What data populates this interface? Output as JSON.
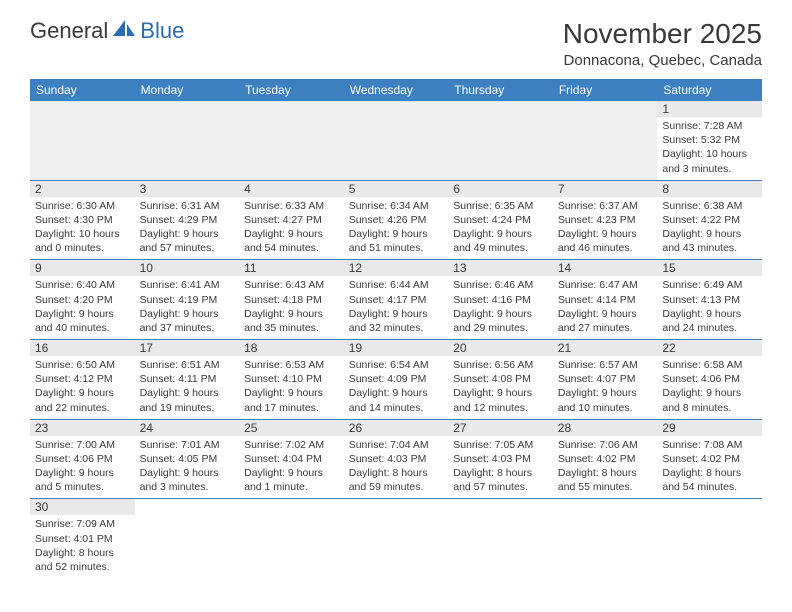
{
  "logo": {
    "part1": "General",
    "part2": "Blue",
    "part1_color": "#3a3a3a",
    "part2_color": "#2a6db3"
  },
  "title": "November 2025",
  "location": "Donnacona, Quebec, Canada",
  "colors": {
    "header_bg": "#3c80c2",
    "header_text": "#ffffff",
    "row_divider": "#3c80c2",
    "daynum_bg": "#e9e9e9",
    "blank_bg": "#efefef",
    "text": "#3a3a3a"
  },
  "weekdays": [
    "Sunday",
    "Monday",
    "Tuesday",
    "Wednesday",
    "Thursday",
    "Friday",
    "Saturday"
  ],
  "weeks": [
    [
      null,
      null,
      null,
      null,
      null,
      null,
      {
        "day": "1",
        "sunrise": "7:28 AM",
        "sunset": "5:32 PM",
        "daylight": "10 hours and 3 minutes."
      }
    ],
    [
      {
        "day": "2",
        "sunrise": "6:30 AM",
        "sunset": "4:30 PM",
        "daylight": "10 hours and 0 minutes."
      },
      {
        "day": "3",
        "sunrise": "6:31 AM",
        "sunset": "4:29 PM",
        "daylight": "9 hours and 57 minutes."
      },
      {
        "day": "4",
        "sunrise": "6:33 AM",
        "sunset": "4:27 PM",
        "daylight": "9 hours and 54 minutes."
      },
      {
        "day": "5",
        "sunrise": "6:34 AM",
        "sunset": "4:26 PM",
        "daylight": "9 hours and 51 minutes."
      },
      {
        "day": "6",
        "sunrise": "6:35 AM",
        "sunset": "4:24 PM",
        "daylight": "9 hours and 49 minutes."
      },
      {
        "day": "7",
        "sunrise": "6:37 AM",
        "sunset": "4:23 PM",
        "daylight": "9 hours and 46 minutes."
      },
      {
        "day": "8",
        "sunrise": "6:38 AM",
        "sunset": "4:22 PM",
        "daylight": "9 hours and 43 minutes."
      }
    ],
    [
      {
        "day": "9",
        "sunrise": "6:40 AM",
        "sunset": "4:20 PM",
        "daylight": "9 hours and 40 minutes."
      },
      {
        "day": "10",
        "sunrise": "6:41 AM",
        "sunset": "4:19 PM",
        "daylight": "9 hours and 37 minutes."
      },
      {
        "day": "11",
        "sunrise": "6:43 AM",
        "sunset": "4:18 PM",
        "daylight": "9 hours and 35 minutes."
      },
      {
        "day": "12",
        "sunrise": "6:44 AM",
        "sunset": "4:17 PM",
        "daylight": "9 hours and 32 minutes."
      },
      {
        "day": "13",
        "sunrise": "6:46 AM",
        "sunset": "4:16 PM",
        "daylight": "9 hours and 29 minutes."
      },
      {
        "day": "14",
        "sunrise": "6:47 AM",
        "sunset": "4:14 PM",
        "daylight": "9 hours and 27 minutes."
      },
      {
        "day": "15",
        "sunrise": "6:49 AM",
        "sunset": "4:13 PM",
        "daylight": "9 hours and 24 minutes."
      }
    ],
    [
      {
        "day": "16",
        "sunrise": "6:50 AM",
        "sunset": "4:12 PM",
        "daylight": "9 hours and 22 minutes."
      },
      {
        "day": "17",
        "sunrise": "6:51 AM",
        "sunset": "4:11 PM",
        "daylight": "9 hours and 19 minutes."
      },
      {
        "day": "18",
        "sunrise": "6:53 AM",
        "sunset": "4:10 PM",
        "daylight": "9 hours and 17 minutes."
      },
      {
        "day": "19",
        "sunrise": "6:54 AM",
        "sunset": "4:09 PM",
        "daylight": "9 hours and 14 minutes."
      },
      {
        "day": "20",
        "sunrise": "6:56 AM",
        "sunset": "4:08 PM",
        "daylight": "9 hours and 12 minutes."
      },
      {
        "day": "21",
        "sunrise": "6:57 AM",
        "sunset": "4:07 PM",
        "daylight": "9 hours and 10 minutes."
      },
      {
        "day": "22",
        "sunrise": "6:58 AM",
        "sunset": "4:06 PM",
        "daylight": "9 hours and 8 minutes."
      }
    ],
    [
      {
        "day": "23",
        "sunrise": "7:00 AM",
        "sunset": "4:06 PM",
        "daylight": "9 hours and 5 minutes."
      },
      {
        "day": "24",
        "sunrise": "7:01 AM",
        "sunset": "4:05 PM",
        "daylight": "9 hours and 3 minutes."
      },
      {
        "day": "25",
        "sunrise": "7:02 AM",
        "sunset": "4:04 PM",
        "daylight": "9 hours and 1 minute."
      },
      {
        "day": "26",
        "sunrise": "7:04 AM",
        "sunset": "4:03 PM",
        "daylight": "8 hours and 59 minutes."
      },
      {
        "day": "27",
        "sunrise": "7:05 AM",
        "sunset": "4:03 PM",
        "daylight": "8 hours and 57 minutes."
      },
      {
        "day": "28",
        "sunrise": "7:06 AM",
        "sunset": "4:02 PM",
        "daylight": "8 hours and 55 minutes."
      },
      {
        "day": "29",
        "sunrise": "7:08 AM",
        "sunset": "4:02 PM",
        "daylight": "8 hours and 54 minutes."
      }
    ],
    [
      {
        "day": "30",
        "sunrise": "7:09 AM",
        "sunset": "4:01 PM",
        "daylight": "8 hours and 52 minutes."
      },
      null,
      null,
      null,
      null,
      null,
      null
    ]
  ],
  "labels": {
    "sunrise": "Sunrise:",
    "sunset": "Sunset:",
    "daylight": "Daylight:"
  }
}
